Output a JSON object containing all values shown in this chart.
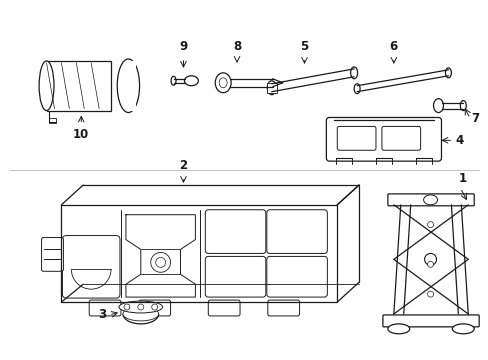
{
  "background_color": "#ffffff",
  "line_color": "#1a1a1a",
  "fig_width": 4.89,
  "fig_height": 3.6,
  "dpi": 100,
  "border_color": "#cccccc"
}
